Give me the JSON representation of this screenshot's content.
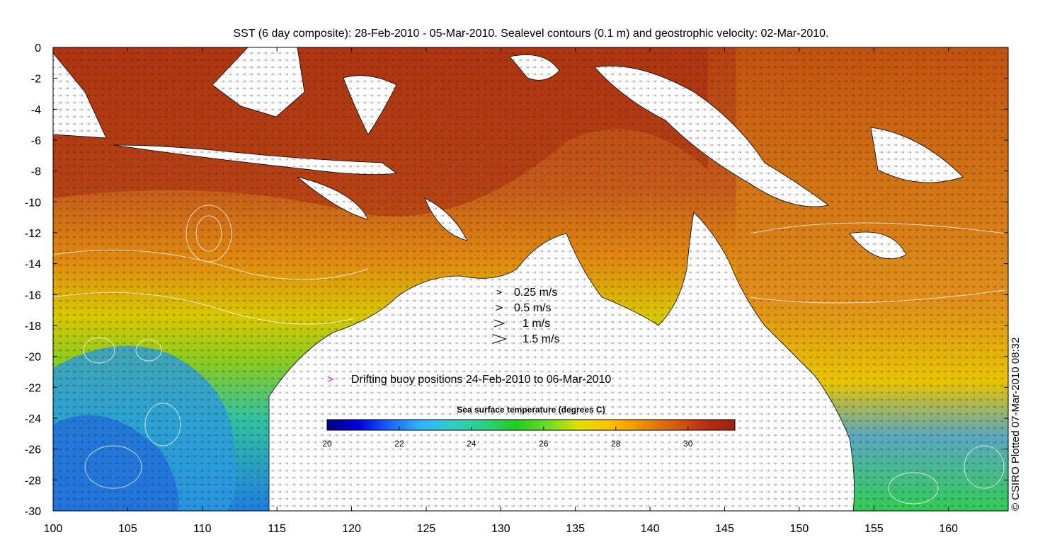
{
  "title": "SST (6 day composite): 28-Feb-2010 - 05-Mar-2010. Sealevel contours (0.1 m) and geostrophic velocity: 02-Mar-2010.",
  "credit": "© CSIRO Plotted 07-Mar-2010 08:32",
  "axes": {
    "x_ticks": [
      "100",
      "105",
      "110",
      "115",
      "120",
      "125",
      "130",
      "135",
      "140",
      "145",
      "150",
      "155",
      "160"
    ],
    "y_ticks": [
      "0",
      "-2",
      "-4",
      "-6",
      "-8",
      "-10",
      "-12",
      "-14",
      "-16",
      "-18",
      "-20",
      "-22",
      "-24",
      "-26",
      "-28",
      "-30"
    ],
    "lon_range": [
      100,
      164
    ],
    "lat_range": [
      -30,
      0
    ]
  },
  "velocity_legend": [
    {
      "label": "0.25 m/s",
      "speed": 0.25
    },
    {
      "label": "0.5 m/s",
      "speed": 0.5
    },
    {
      "label": "1 m/s",
      "speed": 1
    },
    {
      "label": "1.5 m/s",
      "speed": 1.5
    }
  ],
  "buoy_legend": {
    "label": "Drifting buoy positions 24-Feb-2010 to 06-Mar-2010",
    "color": "#cc33cc"
  },
  "colorbar": {
    "title": "Sea surface temperature (degrees C)",
    "ticks": [
      "20",
      "22",
      "24",
      "26",
      "28",
      "30"
    ],
    "range": [
      20,
      31.3
    ],
    "colors": [
      "#00007f",
      "#0000d9",
      "#1a66ff",
      "#33b3ff",
      "#33ccc4",
      "#2fcf82",
      "#22cc22",
      "#66dd22",
      "#dde000",
      "#ffc000",
      "#ee8f00",
      "#d76010",
      "#bb3010",
      "#9c1f10"
    ]
  },
  "map": {
    "warm_color": "#c8561a",
    "hot_color": "#a3250e",
    "land_color": "#ffffff"
  }
}
